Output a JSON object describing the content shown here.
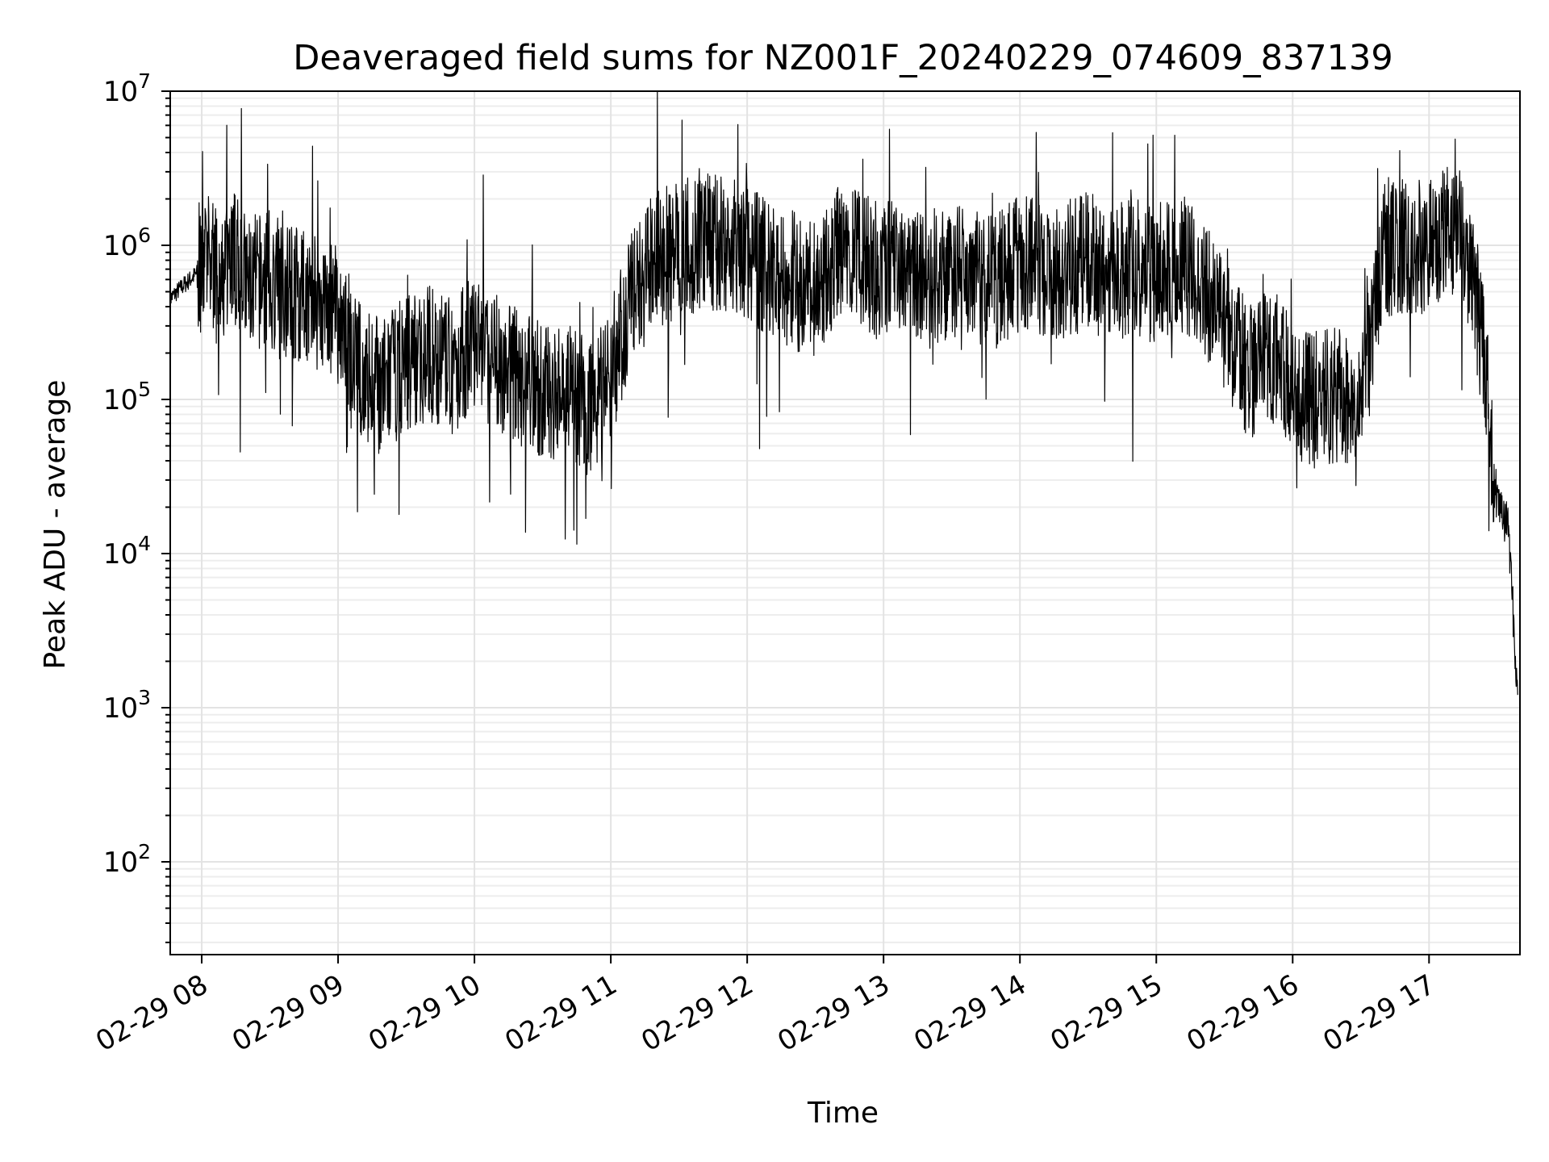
{
  "chart_data": {
    "type": "line",
    "title": "Deaveraged field sums for NZ001F_20240229_074609_837139",
    "xlabel": "Time",
    "ylabel": "Peak ADU - average",
    "yscale": "log",
    "ylim": [
      25,
      10000000
    ],
    "xlim": [
      "2024-02-29 07:46:09",
      "2024-02-29 17:40:00"
    ],
    "grid": true,
    "line_color": "#000000",
    "x_ticks": [
      "2024-02-29 08:00",
      "2024-02-29 09:00",
      "2024-02-29 10:00",
      "2024-02-29 11:00",
      "2024-02-29 12:00",
      "2024-02-29 13:00",
      "2024-02-29 14:00",
      "2024-02-29 15:00",
      "2024-02-29 16:00",
      "2024-02-29 17:00"
    ],
    "x_tick_labels": [
      "02-29 08",
      "02-29 09",
      "02-29 10",
      "02-29 11",
      "02-29 12",
      "02-29 13",
      "02-29 14",
      "02-29 15",
      "02-29 16",
      "02-29 17"
    ],
    "y_ticks": [
      {
        "value": 100,
        "base": "10",
        "exp": "2"
      },
      {
        "value": 1000,
        "base": "10",
        "exp": "3"
      },
      {
        "value": 10000,
        "base": "10",
        "exp": "4"
      },
      {
        "value": 100000,
        "base": "10",
        "exp": "5"
      },
      {
        "value": 1000000,
        "base": "10",
        "exp": "6"
      },
      {
        "value": 10000000,
        "base": "10",
        "exp": "7"
      }
    ],
    "series": [
      {
        "x": [
          "2024-02-29 07:46",
          "2024-02-29 07:52",
          "2024-02-29 08:00",
          "2024-02-29 08:05",
          "2024-02-29 08:08",
          "2024-02-29 08:12",
          "2024-02-29 08:20",
          "2024-02-29 08:30",
          "2024-02-29 08:40",
          "2024-02-29 08:50",
          "2024-02-29 09:00",
          "2024-02-29 09:10",
          "2024-02-29 09:20",
          "2024-02-29 09:30",
          "2024-02-29 09:40",
          "2024-02-29 09:50",
          "2024-02-29 10:00",
          "2024-02-29 10:10",
          "2024-02-29 10:20",
          "2024-02-29 10:30",
          "2024-02-29 10:40",
          "2024-02-29 10:50",
          "2024-02-29 11:00",
          "2024-02-29 11:10",
          "2024-02-29 11:20",
          "2024-02-29 11:30",
          "2024-02-29 11:40",
          "2024-02-29 11:50",
          "2024-02-29 12:00",
          "2024-02-29 12:10",
          "2024-02-29 12:20",
          "2024-02-29 12:30",
          "2024-02-29 12:40",
          "2024-02-29 12:50",
          "2024-02-29 13:00",
          "2024-02-29 13:10",
          "2024-02-29 13:20",
          "2024-02-29 13:30",
          "2024-02-29 13:40",
          "2024-02-29 13:50",
          "2024-02-29 14:00",
          "2024-02-29 14:10",
          "2024-02-29 14:20",
          "2024-02-29 14:30",
          "2024-02-29 14:40",
          "2024-02-29 14:50",
          "2024-02-29 15:00",
          "2024-02-29 15:10",
          "2024-02-29 15:20",
          "2024-02-29 15:30",
          "2024-02-29 15:40",
          "2024-02-29 15:50",
          "2024-02-29 16:00",
          "2024-02-29 16:10",
          "2024-02-29 16:20",
          "2024-02-29 16:30",
          "2024-02-29 16:40",
          "2024-02-29 16:50",
          "2024-02-29 17:00",
          "2024-02-29 17:10",
          "2024-02-29 17:15",
          "2024-02-29 17:20",
          "2024-02-29 17:25",
          "2024-02-29 17:30",
          "2024-02-29 17:35",
          "2024-02-29 17:39"
        ],
        "y": [
          450000,
          550000,
          700000,
          800000,
          400000,
          1000000,
          550000,
          600000,
          500000,
          450000,
          350000,
          150000,
          120000,
          180000,
          200000,
          160000,
          230000,
          170000,
          150000,
          110000,
          120000,
          90000,
          150000,
          500000,
          800000,
          900000,
          1100000,
          1000000,
          900000,
          700000,
          600000,
          500000,
          900000,
          800000,
          700000,
          650000,
          600000,
          700000,
          650000,
          600000,
          750000,
          700000,
          700000,
          800000,
          650000,
          750000,
          600000,
          800000,
          600000,
          300000,
          150000,
          200000,
          120000,
          100000,
          110000,
          90000,
          900000,
          1000000,
          1000000,
          1300000,
          1200000,
          500000,
          150000,
          20000,
          15000,
          1100
        ]
      }
    ]
  }
}
